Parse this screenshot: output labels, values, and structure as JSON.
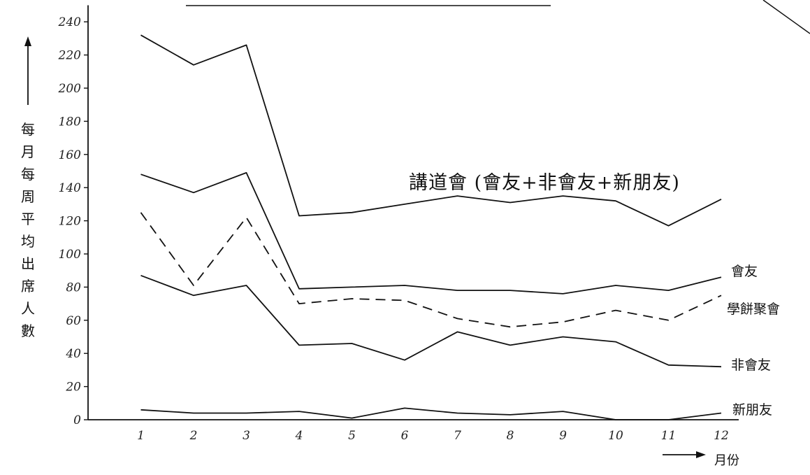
{
  "chart_data": {
    "type": "line",
    "ylabel": "每月每周平均出席人數",
    "xlabel": "月份",
    "x": [
      1,
      2,
      3,
      4,
      5,
      6,
      7,
      8,
      9,
      10,
      11,
      12
    ],
    "y_ticks": [
      0,
      20,
      40,
      60,
      80,
      100,
      120,
      140,
      160,
      180,
      200,
      220,
      240
    ],
    "ylim": [
      0,
      250
    ],
    "xlim": [
      0,
      12
    ],
    "grid": false,
    "legend": "labels at line ends",
    "series": [
      {
        "name": "講道會 (會友+非會友+新朋友)",
        "style": "solid",
        "values": [
          232,
          214,
          226,
          123,
          125,
          130,
          135,
          131,
          135,
          132,
          117,
          133
        ]
      },
      {
        "name": "會友",
        "style": "solid",
        "values": [
          148,
          137,
          149,
          79,
          80,
          81,
          78,
          78,
          76,
          81,
          78,
          86
        ]
      },
      {
        "name": "學餅聚會",
        "style": "dashed",
        "values": [
          125,
          81,
          122,
          70,
          73,
          72,
          61,
          56,
          59,
          66,
          60,
          75
        ]
      },
      {
        "name": "非會友",
        "style": "solid",
        "values": [
          87,
          75,
          81,
          45,
          46,
          36,
          53,
          45,
          50,
          47,
          33,
          32
        ]
      },
      {
        "name": "新朋友",
        "style": "solid",
        "values": [
          6,
          4,
          4,
          5,
          1,
          7,
          4,
          3,
          5,
          0,
          0,
          4
        ]
      }
    ]
  }
}
